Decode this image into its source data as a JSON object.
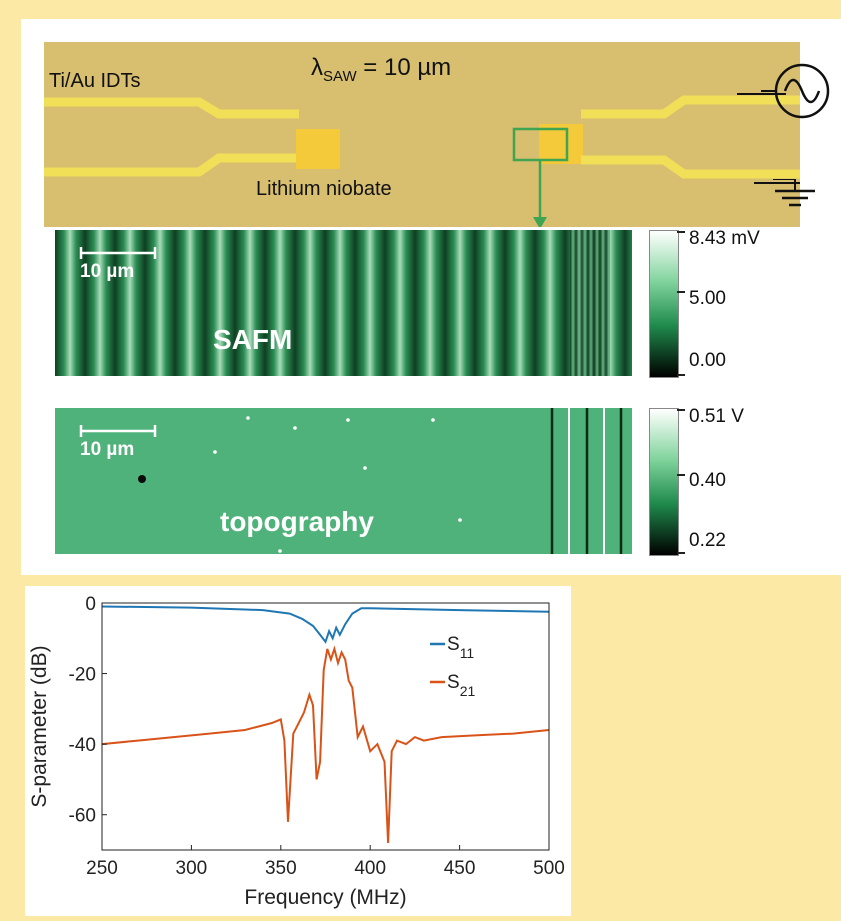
{
  "device": {
    "idt_label": "Ti/Au IDTs",
    "wavelength_label": "λ",
    "wavelength_sub": "SAW",
    "wavelength_value": " = 10 µm",
    "substrate_label": "Lithium niobate"
  },
  "safm": {
    "label": "SAFM",
    "scalebar": "10 µm",
    "colorbar_labels": [
      "8.43 mV",
      "5.00",
      "0.00"
    ]
  },
  "topography": {
    "label": "topography",
    "scalebar": "10 µm",
    "colorbar_labels": [
      "0.51 V",
      "0.40",
      "0.22"
    ]
  },
  "colors": {
    "background": "#fde9a6",
    "device": "#d7bf6f",
    "electrode": "#f2df58",
    "pad": "#f4c93a",
    "roi_box": "#3fa552",
    "safm_green": "#1f7a45",
    "topo_green": "#4fb27a",
    "s11": "#1f77b4",
    "s21": "#d95319"
  },
  "chart_data": {
    "type": "line",
    "xlabel": "Frequency (MHz)",
    "ylabel": "S-parameter (dB)",
    "xlim": [
      250,
      500
    ],
    "ylim": [
      -70,
      0
    ],
    "xticks": [
      250,
      300,
      350,
      400,
      450,
      500
    ],
    "yticks": [
      0,
      -20,
      -40,
      -60
    ],
    "grid": false,
    "legend_position": "right",
    "series": [
      {
        "name": "S11",
        "legend_main": "S",
        "legend_sub": "11",
        "color": "#1f77b4",
        "x": [
          250,
          300,
          340,
          355,
          362,
          368,
          372,
          375,
          377,
          379,
          381,
          383,
          386,
          390,
          395,
          400,
          450,
          500
        ],
        "y": [
          -1,
          -1.3,
          -2,
          -3,
          -4.5,
          -6.5,
          -9,
          -11,
          -8,
          -10,
          -7,
          -9,
          -6,
          -3,
          -1.5,
          -1.5,
          -2,
          -2.5
        ]
      },
      {
        "name": "S21",
        "legend_main": "S",
        "legend_sub": "21",
        "color": "#d95319",
        "x": [
          250,
          270,
          290,
          310,
          330,
          345,
          350,
          352,
          354,
          357,
          360,
          363,
          366,
          368,
          370,
          372,
          374,
          376,
          378,
          380,
          382,
          384,
          386,
          388,
          390,
          393,
          396,
          400,
          404,
          408,
          410,
          412,
          415,
          420,
          425,
          430,
          440,
          460,
          480,
          500
        ],
        "y": [
          -40,
          -39,
          -38,
          -37,
          -36,
          -34,
          -33,
          -39,
          -62,
          -37,
          -34,
          -31,
          -26,
          -29,
          -50,
          -45,
          -19,
          -13,
          -16,
          -13,
          -17,
          -14,
          -16,
          -22,
          -24,
          -38,
          -35,
          -42,
          -40,
          -45,
          -68,
          -42,
          -39,
          -40,
          -38,
          -39,
          -38,
          -37.5,
          -37,
          -36
        ]
      }
    ]
  }
}
